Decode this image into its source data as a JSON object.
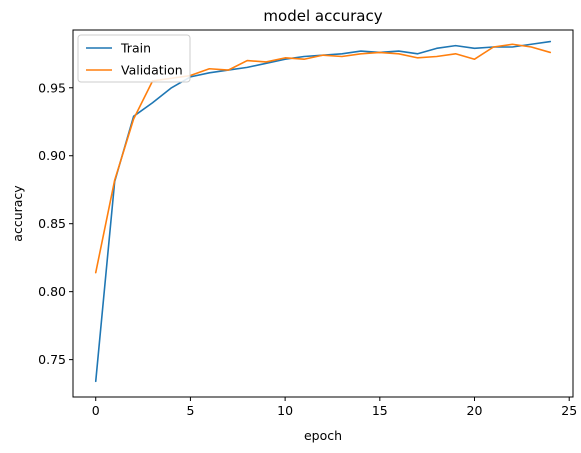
{
  "chart_data": {
    "type": "line",
    "title": "model accuracy",
    "xlabel": "epoch",
    "ylabel": "accuracy",
    "xlim": [
      -1.2,
      25.2
    ],
    "ylim": [
      0.7225,
      0.9925
    ],
    "xticks": [
      0,
      5,
      10,
      15,
      20,
      25
    ],
    "yticks": [
      0.75,
      0.8,
      0.85,
      0.9,
      0.95
    ],
    "grid": false,
    "legend_position": "top-left",
    "x": [
      0,
      1,
      2,
      3,
      4,
      5,
      6,
      7,
      8,
      9,
      10,
      11,
      12,
      13,
      14,
      15,
      16,
      17,
      18,
      19,
      20,
      21,
      22,
      23,
      24
    ],
    "series": [
      {
        "name": "Train",
        "color": "#1f77b4",
        "values": [
          0.734,
          0.881,
          0.929,
          0.939,
          0.95,
          0.958,
          0.961,
          0.963,
          0.965,
          0.968,
          0.971,
          0.973,
          0.974,
          0.975,
          0.977,
          0.976,
          0.977,
          0.975,
          0.979,
          0.981,
          0.979,
          0.98,
          0.98,
          0.982,
          0.984
        ]
      },
      {
        "name": "Validation",
        "color": "#ff7f0e",
        "values": [
          0.814,
          0.882,
          0.927,
          0.955,
          0.957,
          0.959,
          0.964,
          0.963,
          0.97,
          0.969,
          0.972,
          0.971,
          0.974,
          0.973,
          0.975,
          0.976,
          0.975,
          0.972,
          0.973,
          0.975,
          0.971,
          0.98,
          0.982,
          0.98,
          0.976
        ]
      }
    ]
  }
}
